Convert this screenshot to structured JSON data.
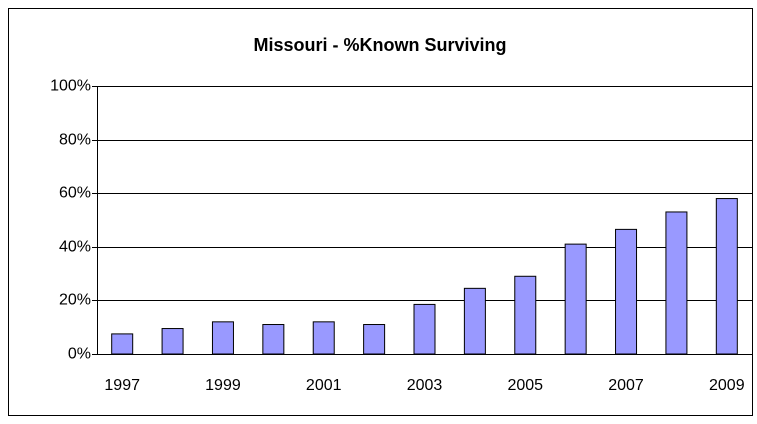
{
  "chart_data": {
    "type": "bar",
    "title": "Missouri - %Known Surviving",
    "categories": [
      "1997",
      null,
      "1999",
      null,
      "2001",
      null,
      "2003",
      null,
      "2005",
      null,
      "2007",
      null,
      "2009"
    ],
    "values": [
      7.5,
      9.5,
      12,
      11,
      12,
      11,
      18.5,
      24.5,
      29,
      41,
      46.5,
      53,
      58
    ],
    "color": "#9999ff",
    "ylim": [
      0,
      100
    ],
    "yticks": [
      {
        "value": 0,
        "label": "0%"
      },
      {
        "value": 20,
        "label": "20%"
      },
      {
        "value": 40,
        "label": "40%"
      },
      {
        "value": 60,
        "label": "60%"
      },
      {
        "value": 80,
        "label": "80%"
      },
      {
        "value": 100,
        "label": "100%"
      }
    ],
    "grid": true
  }
}
